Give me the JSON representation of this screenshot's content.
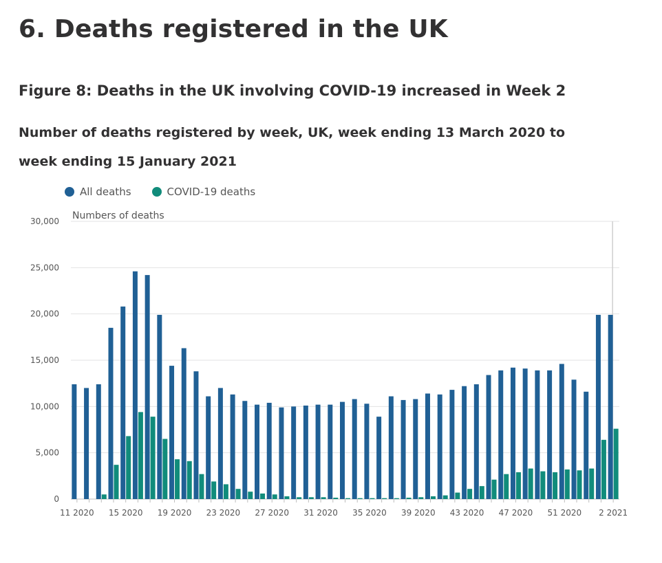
{
  "section_title": "6.  Deaths registered in the UK",
  "figure_title": "Figure 8: Deaths in the UK involving COVID-19 increased in Week 2",
  "subtitle": "Number of deaths registered by week, UK, week ending 13 March 2020 to week ending 15 January 2021",
  "colors": {
    "all_deaths": "#206095",
    "covid_deaths": "#118c7b",
    "grid": "#e2e2e3",
    "axis": "#bdbdbd"
  },
  "chart_data": {
    "type": "bar",
    "title": "Figure 8: Deaths in the UK involving COVID-19 increased in Week 2",
    "ylabel": "Numbers of deaths",
    "xlabel": "",
    "ylim": [
      0,
      30000
    ],
    "yticks": [
      0,
      5000,
      10000,
      15000,
      20000,
      25000,
      30000
    ],
    "ytick_labels": [
      "0",
      "5,000",
      "10,000",
      "15,000",
      "20,000",
      "25,000",
      "30,000"
    ],
    "legend_position": "top-left",
    "categories": [
      "11 2020",
      "12 2020",
      "13 2020",
      "14 2020",
      "15 2020",
      "16 2020",
      "17 2020",
      "18 2020",
      "19 2020",
      "20 2020",
      "21 2020",
      "22 2020",
      "23 2020",
      "24 2020",
      "25 2020",
      "26 2020",
      "27 2020",
      "28 2020",
      "29 2020",
      "30 2020",
      "31 2020",
      "32 2020",
      "33 2020",
      "34 2020",
      "35 2020",
      "36 2020",
      "37 2020",
      "38 2020",
      "39 2020",
      "40 2020",
      "41 2020",
      "42 2020",
      "43 2020",
      "44 2020",
      "45 2020",
      "46 2020",
      "47 2020",
      "48 2020",
      "49 2020",
      "50 2020",
      "51 2020",
      "52 2020",
      "53 2020",
      "1 2021",
      "2 2021"
    ],
    "xtick_labels": [
      {
        "index": 0,
        "label": "11 2020"
      },
      {
        "index": 4,
        "label": "15 2020"
      },
      {
        "index": 8,
        "label": "19 2020"
      },
      {
        "index": 12,
        "label": "23 2020"
      },
      {
        "index": 16,
        "label": "27 2020"
      },
      {
        "index": 20,
        "label": "31 2020"
      },
      {
        "index": 24,
        "label": "35 2020"
      },
      {
        "index": 28,
        "label": "39 2020"
      },
      {
        "index": 32,
        "label": "43 2020"
      },
      {
        "index": 36,
        "label": "47 2020"
      },
      {
        "index": 40,
        "label": "51 2020"
      },
      {
        "index": 44,
        "label": "2 2021"
      }
    ],
    "highlight_index": 44,
    "series": [
      {
        "name": "All deaths",
        "color": "#206095",
        "values": [
          12400,
          12000,
          12400,
          18500,
          20800,
          24600,
          24200,
          19900,
          14400,
          16300,
          13800,
          11100,
          12000,
          11300,
          10600,
          10200,
          10400,
          9900,
          10000,
          10100,
          10200,
          10200,
          10500,
          10800,
          10300,
          8900,
          11100,
          10700,
          10800,
          11400,
          11300,
          11800,
          12200,
          12400,
          13400,
          13900,
          14200,
          14100,
          13900,
          13900,
          14600,
          12900,
          11600,
          19900,
          19900
        ]
      },
      {
        "name": "COVID-19 deaths",
        "color": "#118c7b",
        "values": [
          0,
          0,
          500,
          3700,
          6800,
          9400,
          8900,
          6500,
          4300,
          4100,
          2700,
          1900,
          1600,
          1100,
          800,
          600,
          500,
          300,
          200,
          200,
          200,
          150,
          100,
          100,
          100,
          100,
          100,
          150,
          200,
          300,
          400,
          700,
          1100,
          1400,
          2100,
          2700,
          2900,
          3300,
          3000,
          2900,
          3200,
          3100,
          3300,
          6400,
          7600
        ]
      }
    ]
  }
}
